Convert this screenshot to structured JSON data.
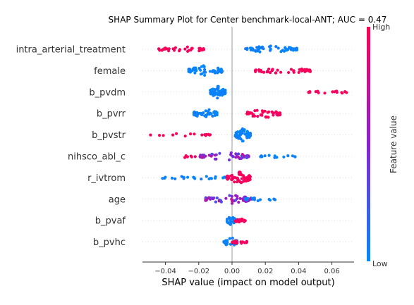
{
  "chart_data": {
    "type": "scatter",
    "subtype": "shap-beeswarm",
    "title": "SHAP Summary Plot for Center benchmark-local-ANT; AUC = 0.47",
    "xlabel": "SHAP value (impact on model output)",
    "xlim": [
      -0.055,
      0.072
    ],
    "xticks": [
      -0.04,
      -0.02,
      0.0,
      0.02,
      0.04,
      0.06
    ],
    "xtick_labels": [
      "−0.04",
      "−0.02",
      "0.00",
      "0.02",
      "0.04",
      "0.06"
    ],
    "zero_line": 0.0,
    "grid": false,
    "colorbar": {
      "label": "Feature value",
      "high_label": "High",
      "low_label": "Low",
      "high_color": "#ff0052",
      "mid_color": "#8a1fd6",
      "low_color": "#008bfb"
    },
    "features": [
      {
        "name": "intra_arterial_treatment",
        "clusters": [
          {
            "min": -0.044,
            "max": -0.017,
            "level": 1.0,
            "count": 42,
            "spread": 0.55
          },
          {
            "min": 0.008,
            "max": 0.039,
            "level": 0.0,
            "count": 50,
            "spread": 0.6
          }
        ]
      },
      {
        "name": "female",
        "clusters": [
          {
            "min": -0.026,
            "max": -0.006,
            "level": 0.0,
            "count": 60,
            "spread": 0.9
          },
          {
            "min": 0.014,
            "max": 0.047,
            "level": 1.0,
            "count": 45,
            "spread": 0.55
          }
        ]
      },
      {
        "name": "b_pvdm",
        "clusters": [
          {
            "min": -0.013,
            "max": -0.004,
            "level": 0.0,
            "count": 80,
            "spread": 1.0
          },
          {
            "min": 0.046,
            "max": 0.069,
            "level": 1.0,
            "count": 18,
            "spread": 0.35
          }
        ]
      },
      {
        "name": "b_pvrr",
        "clusters": [
          {
            "min": -0.023,
            "max": -0.009,
            "level": 0.0,
            "count": 48,
            "spread": 0.8
          },
          {
            "min": 0.009,
            "max": 0.029,
            "level": 1.0,
            "count": 52,
            "spread": 0.8
          }
        ]
      },
      {
        "name": "b_pvstr",
        "clusters": [
          {
            "min": -0.049,
            "max": -0.013,
            "level": 1.0,
            "count": 16,
            "spread": 0.25
          },
          {
            "min": 0.002,
            "max": 0.011,
            "level": 0.0,
            "count": 70,
            "spread": 1.0
          }
        ]
      },
      {
        "name": "nihsco_abl_c",
        "clusters": [
          {
            "min": -0.033,
            "max": -0.018,
            "level": 1.0,
            "count": 8,
            "spread": 0.3
          },
          {
            "min": -0.019,
            "max": 0.01,
            "level": 0.5,
            "count": 50,
            "spread": 0.7
          },
          {
            "min": 0.017,
            "max": 0.038,
            "level": 0.0,
            "count": 16,
            "spread": 0.25
          }
        ]
      },
      {
        "name": "r_ivtrom",
        "clusters": [
          {
            "min": -0.042,
            "max": -0.003,
            "level": 0.0,
            "count": 28,
            "spread": 0.3
          },
          {
            "min": -0.003,
            "max": 0.011,
            "level": 1.0,
            "count": 75,
            "spread": 1.0
          }
        ]
      },
      {
        "name": "age",
        "clusters": [
          {
            "min": -0.016,
            "max": 0.012,
            "level": 0.5,
            "count": 55,
            "spread": 0.75
          },
          {
            "min": 0.008,
            "max": 0.026,
            "level": 0.0,
            "count": 16,
            "spread": 0.3
          }
        ]
      },
      {
        "name": "b_pvaf",
        "clusters": [
          {
            "min": -0.003,
            "max": 0.002,
            "level": 0.0,
            "count": 40,
            "spread": 0.8
          },
          {
            "min": 0.002,
            "max": 0.008,
            "level": 1.0,
            "count": 16,
            "spread": 0.35
          }
        ]
      },
      {
        "name": "b_pvhc",
        "clusters": [
          {
            "min": -0.005,
            "max": 0.003,
            "level": 0.0,
            "count": 38,
            "spread": 0.8
          },
          {
            "min": 0.0,
            "max": 0.009,
            "level": 1.0,
            "count": 18,
            "spread": 0.35
          }
        ]
      }
    ]
  }
}
